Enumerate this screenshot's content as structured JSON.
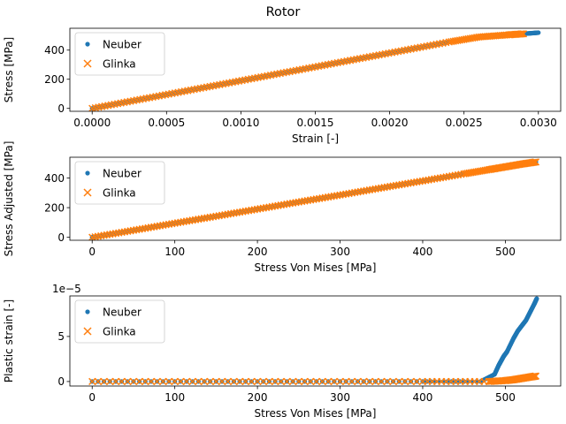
{
  "figure": {
    "title": "Rotor"
  },
  "colors": {
    "neuber": "#1f77b4",
    "glinka": "#ff7f0e"
  },
  "chart_data": [
    {
      "type": "scatter",
      "xlabel": "Strain [-]",
      "ylabel": "Stress [MPa]",
      "xlim": [
        -0.00015,
        0.00315
      ],
      "ylim": [
        -20,
        550
      ],
      "xticks": [
        0,
        0.0005,
        0.001,
        0.0015,
        0.002,
        0.0025,
        0.003
      ],
      "xtick_labels": [
        "0.0000",
        "0.0005",
        "0.0010",
        "0.0015",
        "0.0020",
        "0.0025",
        "0.0030"
      ],
      "yticks": [
        0,
        200,
        400
      ],
      "ytick_labels": [
        "0",
        "200",
        "400"
      ],
      "legend_position": "upper-left",
      "series": [
        {
          "name": "Neuber",
          "marker": "dot",
          "x": [
            0,
            0.0003,
            0.0006,
            0.0009,
            0.0012,
            0.0015,
            0.0018,
            0.0021,
            0.0024,
            0.0026,
            0.0028,
            0.0029,
            0.00295,
            0.003
          ],
          "y": [
            0,
            57,
            114,
            171,
            228,
            285,
            342,
            399,
            456,
            490,
            505,
            512,
            516,
            520
          ]
        },
        {
          "name": "Glinka",
          "marker": "x",
          "x": [
            0,
            0.0003,
            0.0006,
            0.0009,
            0.0012,
            0.0015,
            0.0018,
            0.0021,
            0.0024,
            0.0026,
            0.0028,
            0.0029
          ],
          "y": [
            0,
            57,
            114,
            171,
            228,
            285,
            342,
            399,
            456,
            490,
            505,
            512
          ]
        }
      ]
    },
    {
      "type": "scatter",
      "xlabel": "Stress Von Mises [MPa]",
      "ylabel": "Stress Adjusted [MPa]",
      "xlim": [
        -27,
        567
      ],
      "ylim": [
        -20,
        540
      ],
      "xticks": [
        0,
        100,
        200,
        300,
        400,
        500
      ],
      "xtick_labels": [
        "0",
        "100",
        "200",
        "300",
        "400",
        "500"
      ],
      "yticks": [
        0,
        200,
        400
      ],
      "ytick_labels": [
        "0",
        "200",
        "400"
      ],
      "legend_position": "upper-left",
      "series": [
        {
          "name": "Neuber",
          "marker": "dot",
          "x": [
            0,
            50,
            100,
            150,
            200,
            250,
            300,
            350,
            400,
            450,
            480,
            500,
            520,
            537
          ],
          "y": [
            0,
            47,
            95,
            142,
            190,
            238,
            285,
            333,
            380,
            428,
            456,
            475,
            494,
            508
          ]
        },
        {
          "name": "Glinka",
          "marker": "x",
          "x": [
            0,
            50,
            100,
            150,
            200,
            250,
            300,
            350,
            400,
            450,
            480,
            500,
            520,
            537
          ],
          "y": [
            0,
            47,
            95,
            142,
            190,
            238,
            285,
            333,
            380,
            428,
            456,
            475,
            494,
            508
          ]
        }
      ]
    },
    {
      "type": "scatter",
      "xlabel": "Stress Von Mises [MPa]",
      "ylabel": "Plastic strain [-]",
      "offset_text": "1e−5",
      "xlim": [
        -27,
        567
      ],
      "ylim": [
        -0.5,
        9.5
      ],
      "xticks": [
        0,
        100,
        200,
        300,
        400,
        500
      ],
      "xtick_labels": [
        "0",
        "100",
        "200",
        "300",
        "400",
        "500"
      ],
      "yticks": [
        0,
        5
      ],
      "ytick_labels": [
        "0",
        "5"
      ],
      "legend_position": "upper-left",
      "series": [
        {
          "name": "Neuber",
          "marker": "dot",
          "x": [
            0,
            100,
            200,
            300,
            400,
            470,
            487,
            492,
            495,
            498,
            502,
            510,
            515,
            520,
            525,
            530,
            535,
            538
          ],
          "y": [
            0,
            0,
            0,
            0,
            0,
            0,
            0.8,
            1.8,
            2.3,
            2.8,
            3.3,
            4.8,
            5.6,
            6.2,
            6.8,
            7.7,
            8.6,
            9.2
          ]
        },
        {
          "name": "Glinka",
          "marker": "x",
          "x": [
            0,
            100,
            200,
            300,
            400,
            480,
            500,
            510,
            520,
            530,
            537
          ],
          "y": [
            0,
            0,
            0,
            0,
            0,
            0,
            0.1,
            0.2,
            0.35,
            0.5,
            0.6
          ]
        }
      ]
    }
  ]
}
